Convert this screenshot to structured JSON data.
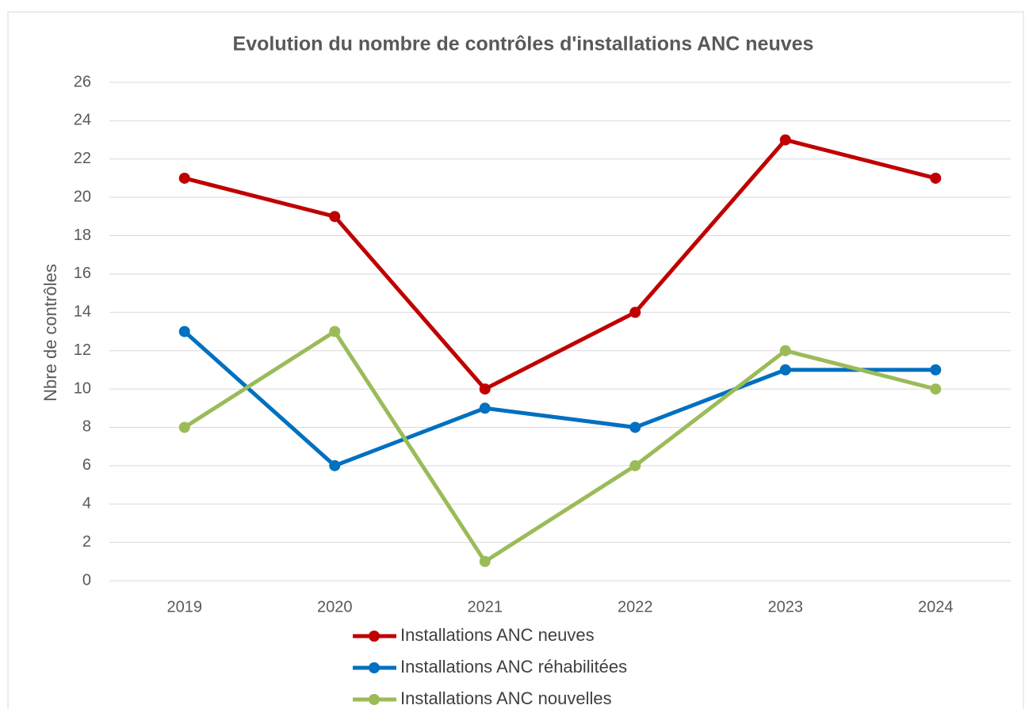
{
  "chart_data": {
    "type": "line",
    "title": "Evolution du nombre de contrôles d'installations ANC neuves",
    "y_label": "Nbre de contrôles",
    "categories": [
      "2019",
      "2020",
      "2021",
      "2022",
      "2023",
      "2024"
    ],
    "series": [
      {
        "name": "Installations ANC neuves",
        "color": "#c00000",
        "values": [
          21,
          19,
          10,
          14,
          23,
          21
        ]
      },
      {
        "name": "Installations ANC réhabilitées",
        "color": "#0070c0",
        "values": [
          13,
          6,
          9,
          8,
          11,
          11
        ]
      },
      {
        "name": "Installations ANC nouvelles",
        "color": "#9bbb59",
        "values": [
          8,
          13,
          1,
          6,
          12,
          10
        ]
      }
    ],
    "ylim": [
      0,
      26
    ],
    "yticks": [
      0,
      2,
      4,
      6,
      8,
      10,
      12,
      14,
      16,
      18,
      20,
      22,
      24,
      26
    ],
    "grid": true,
    "legend": "bottom"
  }
}
